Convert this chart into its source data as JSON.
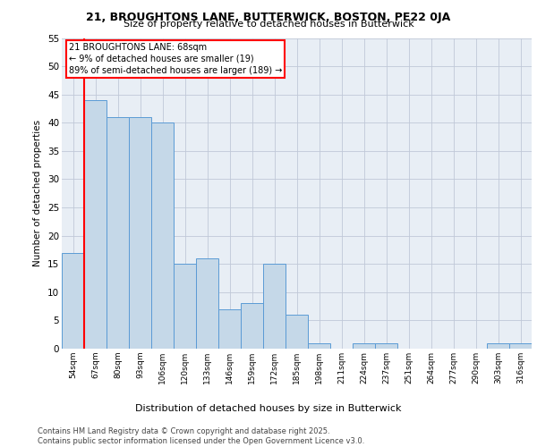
{
  "title1": "21, BROUGHTONS LANE, BUTTERWICK, BOSTON, PE22 0JA",
  "title2": "Size of property relative to detached houses in Butterwick",
  "xlabel": "Distribution of detached houses by size in Butterwick",
  "ylabel": "Number of detached properties",
  "categories": [
    "54sqm",
    "67sqm",
    "80sqm",
    "93sqm",
    "106sqm",
    "120sqm",
    "133sqm",
    "146sqm",
    "159sqm",
    "172sqm",
    "185sqm",
    "198sqm",
    "211sqm",
    "224sqm",
    "237sqm",
    "251sqm",
    "264sqm",
    "277sqm",
    "290sqm",
    "303sqm",
    "316sqm"
  ],
  "values": [
    17,
    44,
    41,
    41,
    40,
    15,
    16,
    7,
    8,
    15,
    6,
    1,
    0,
    1,
    1,
    0,
    0,
    0,
    0,
    1,
    1
  ],
  "bar_color": "#c5d8e8",
  "bar_edge_color": "#5b9bd5",
  "grid_color": "#c0c8d8",
  "background_color": "#e8eef5",
  "red_line_x": 1,
  "annotation_text": "21 BROUGHTONS LANE: 68sqm\n← 9% of detached houses are smaller (19)\n89% of semi-detached houses are larger (189) →",
  "footer1": "Contains HM Land Registry data © Crown copyright and database right 2025.",
  "footer2": "Contains public sector information licensed under the Open Government Licence v3.0.",
  "ylim": [
    0,
    55
  ],
  "yticks": [
    0,
    5,
    10,
    15,
    20,
    25,
    30,
    35,
    40,
    45,
    50,
    55
  ]
}
